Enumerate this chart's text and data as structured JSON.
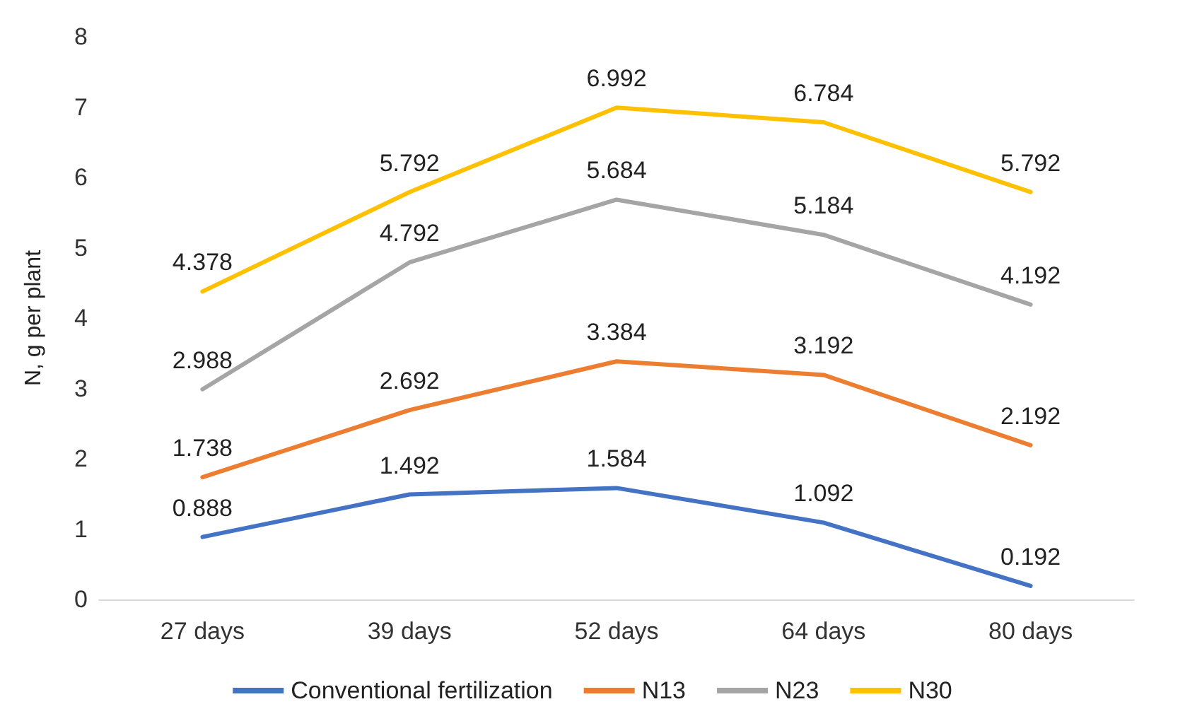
{
  "chart_data": {
    "type": "line",
    "ylabel": "N, g per plant",
    "categories": [
      "27 days",
      "39 days",
      "52 days",
      "64 days",
      "80 days"
    ],
    "series": [
      {
        "name": "Conventional fertilization",
        "color": "#4472c4",
        "values": [
          0.888,
          1.492,
          1.584,
          1.092,
          0.192
        ]
      },
      {
        "name": "N13",
        "color": "#ed7d31",
        "values": [
          1.738,
          2.692,
          3.384,
          3.192,
          2.192
        ]
      },
      {
        "name": "N23",
        "color": "#a5a5a5",
        "values": [
          2.988,
          4.792,
          5.684,
          5.184,
          4.192
        ]
      },
      {
        "name": "N30",
        "color": "#ffc000",
        "values": [
          4.378,
          5.792,
          6.992,
          6.784,
          5.792
        ]
      }
    ],
    "ylim": [
      0,
      8
    ],
    "yticks": [
      0,
      1,
      2,
      3,
      4,
      5,
      6,
      7,
      8
    ],
    "grid": false,
    "legend": "bottom",
    "marker": "none",
    "line_style": "solid",
    "data_labels": true
  }
}
